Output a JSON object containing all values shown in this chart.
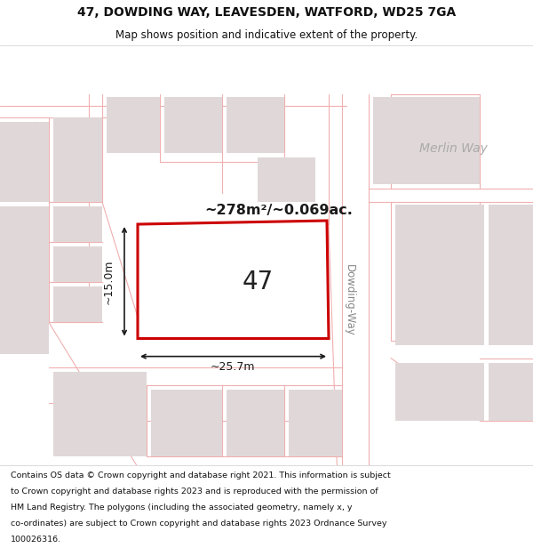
{
  "title_line1": "47, DOWDING WAY, LEAVESDEN, WATFORD, WD25 7GA",
  "title_line2": "Map shows position and indicative extent of the property.",
  "footer_lines": [
    "Contains OS data © Crown copyright and database right 2021. This information is subject",
    "to Crown copyright and database rights 2023 and is reproduced with the permission of",
    "HM Land Registry. The polygons (including the associated geometry, namely x, y",
    "co-ordinates) are subject to Crown copyright and database rights 2023 Ordnance Survey",
    "100026316."
  ],
  "area_label": "~278m²/~0.069ac.",
  "plot_number": "47",
  "width_label": "~25.7m",
  "height_label": "~15.0m",
  "road_label": "Dowding-Way",
  "street_label": "Merlin Way",
  "map_bg": "#f7f3f3",
  "building_fill": "#e0d8d8",
  "highlight_fill": "#ffffff",
  "highlight_stroke": "#cc0000",
  "road_line_color": "#f0b0b0",
  "dim_color": "#1a1a1a",
  "text_color": "#555555",
  "merlin_color": "#999999"
}
